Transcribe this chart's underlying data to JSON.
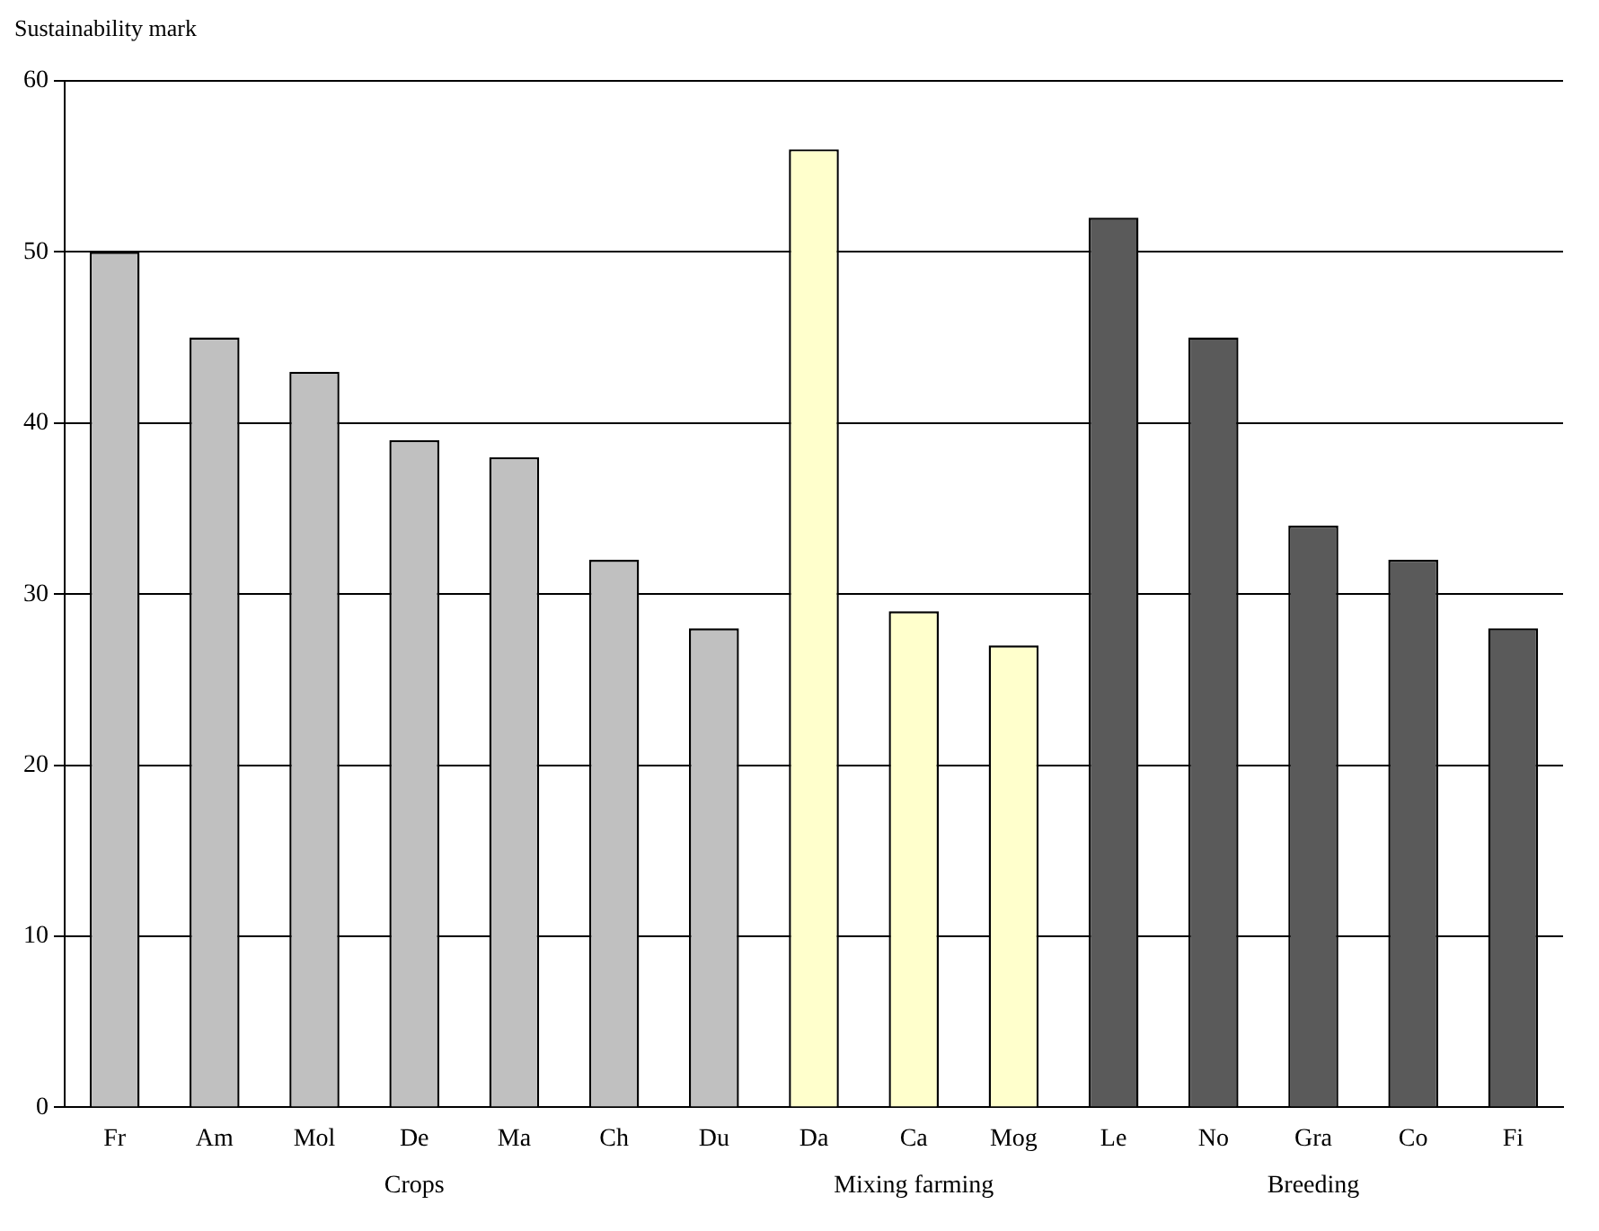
{
  "chart_data": {
    "type": "bar",
    "ylabel": "Sustainability mark",
    "categories": [
      "Fr",
      "Am",
      "Mol",
      "De",
      "Ma",
      "Ch",
      "Du",
      "Da",
      "Ca",
      "Mog",
      "Le",
      "No",
      "Gra",
      "Co",
      "Fi"
    ],
    "values": [
      50,
      45,
      43,
      39,
      38,
      32,
      28,
      56,
      29,
      27,
      52,
      45,
      34,
      32,
      28
    ],
    "colors": [
      "#c0c0c0",
      "#c0c0c0",
      "#c0c0c0",
      "#c0c0c0",
      "#c0c0c0",
      "#c0c0c0",
      "#c0c0c0",
      "#ffffcc",
      "#ffffcc",
      "#ffffcc",
      "#5a5a5a",
      "#5a5a5a",
      "#5a5a5a",
      "#5a5a5a",
      "#5a5a5a"
    ],
    "ylim": [
      0,
      60
    ],
    "yticks": [
      0,
      10,
      20,
      30,
      40,
      50,
      60
    ],
    "grid": "y",
    "legend": false,
    "annotations": [
      "Crops",
      "Mixing farming",
      "Breeding"
    ]
  }
}
